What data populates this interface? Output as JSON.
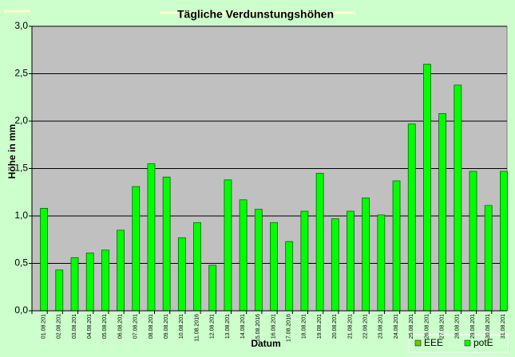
{
  "chart_data": {
    "type": "bar",
    "title": "Tägliche Verdunstungshöhen",
    "y_label": "Höhe in mm",
    "x_label": "Datum",
    "categories": [
      "01.08.201",
      "02.08.201",
      "03.08.201",
      "04.08.201",
      "05.08.201",
      "06.08.201",
      "07.08.201",
      "08.08.201",
      "09.08.201",
      "10.08.201",
      "11.08.2016",
      "12.08.201",
      "13.08.201",
      "14.08.201",
      "15.08.2016",
      "16.08.201",
      "17.08.2016",
      "18.08.201",
      "19.08.201",
      "20.08.201",
      "21.08.201",
      "22.08.201",
      "23.08.201",
      "24.08.201",
      "25.08.201",
      "26.08.201",
      "27.08.201",
      "28.08.201",
      "29.08.201",
      "30.08.201",
      "31.08.201"
    ],
    "series": [
      {
        "name": "EEE",
        "color": "#66cc00",
        "values": [
          null,
          null,
          null,
          null,
          null,
          null,
          null,
          null,
          null,
          null,
          null,
          null,
          null,
          null,
          null,
          null,
          null,
          null,
          null,
          null,
          null,
          null,
          null,
          null,
          null,
          null,
          null,
          null,
          null,
          null,
          null
        ]
      },
      {
        "name": "potE",
        "color": "#00ff00",
        "values": [
          1.08,
          0.43,
          0.56,
          0.61,
          0.64,
          0.85,
          1.31,
          1.55,
          1.41,
          0.77,
          0.93,
          0.48,
          1.38,
          1.17,
          1.07,
          0.93,
          0.73,
          1.05,
          1.45,
          0.97,
          1.05,
          1.19,
          1.01,
          1.37,
          1.97,
          2.6,
          2.08,
          2.38,
          1.47,
          1.11,
          1.47
        ]
      }
    ],
    "ylim": [
      0,
      3
    ],
    "yticks": [
      {
        "value": 0,
        "label": "0,0"
      },
      {
        "value": 0.5,
        "label": "0,5"
      },
      {
        "value": 1,
        "label": "1,0"
      },
      {
        "value": 1.5,
        "label": "1,5"
      },
      {
        "value": 2,
        "label": "2,0"
      },
      {
        "value": 2.5,
        "label": "2,5"
      },
      {
        "value": 3,
        "label": "3,0"
      }
    ],
    "grid": true,
    "legend": "bottom-right"
  }
}
